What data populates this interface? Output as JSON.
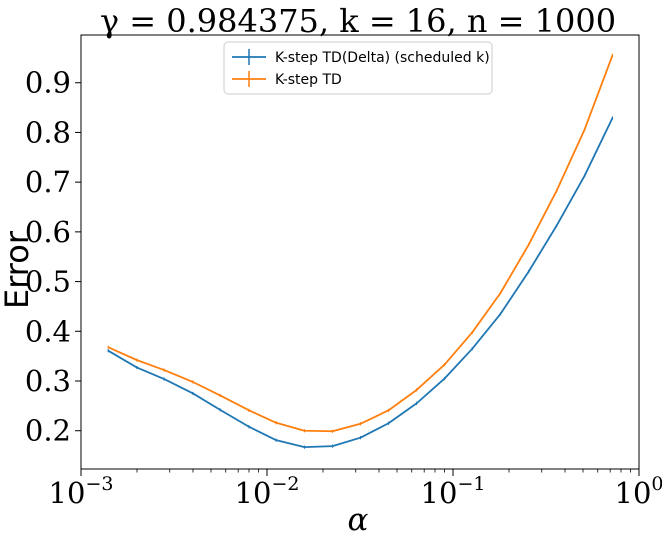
{
  "chart_data": {
    "type": "line",
    "title": "γ = 0.984375, k = 16, n = 1000",
    "xlabel": "α",
    "ylabel": "Error",
    "xscale": "log",
    "xlim": [
      0.001,
      1
    ],
    "ylim": [
      0.123,
      0.996
    ],
    "x_tick_labels": [
      {
        "base": "10",
        "exp": "−3",
        "value": 0.001
      },
      {
        "base": "10",
        "exp": "−2",
        "value": 0.01
      },
      {
        "base": "10",
        "exp": "−1",
        "value": 0.1
      },
      {
        "base": "10",
        "exp": "0",
        "value": 1
      }
    ],
    "y_ticks": [
      0.2,
      0.3,
      0.4,
      0.5,
      0.6,
      0.7,
      0.8,
      0.9
    ],
    "y_tick_labels": [
      "0.2",
      "0.3",
      "0.4",
      "0.5",
      "0.6",
      "0.7",
      "0.8",
      "0.9"
    ],
    "legend_position": "upper center",
    "grid": false,
    "x": [
      0.0014,
      0.002,
      0.0028,
      0.004,
      0.0056,
      0.008,
      0.0112,
      0.0159,
      0.0225,
      0.0318,
      0.045,
      0.0637,
      0.0901,
      0.127,
      0.18,
      0.255,
      0.36,
      0.51,
      0.72
    ],
    "series": [
      {
        "name": "K-step TD(Delta) (scheduled k)",
        "color": "#1f77b4",
        "values": [
          0.361,
          0.327,
          0.304,
          0.275,
          0.242,
          0.208,
          0.181,
          0.167,
          0.169,
          0.186,
          0.215,
          0.255,
          0.305,
          0.365,
          0.435,
          0.52,
          0.612,
          0.713,
          0.829
        ]
      },
      {
        "name": "K-step TD",
        "color": "#ff7f0e",
        "values": [
          0.368,
          0.342,
          0.322,
          0.298,
          0.271,
          0.241,
          0.216,
          0.2,
          0.199,
          0.214,
          0.241,
          0.282,
          0.333,
          0.398,
          0.477,
          0.574,
          0.682,
          0.806,
          0.955
        ]
      }
    ]
  }
}
